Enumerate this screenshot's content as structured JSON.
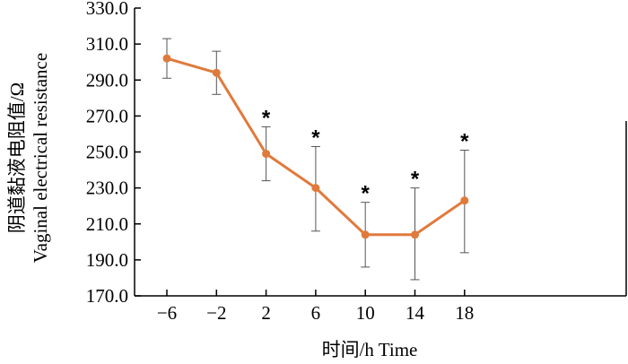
{
  "chart_data": {
    "type": "line",
    "xlabel": "时间/h Time",
    "ylabel_lines": [
      "阴道黏液电阻值/Ω",
      "Vaginal electrical resistance"
    ],
    "x": [
      -6,
      -2,
      2,
      6,
      10,
      14,
      18
    ],
    "x_tick_labels": [
      "−6",
      "−2",
      "2",
      "6",
      "10",
      "14",
      "18"
    ],
    "y_ticks": [
      170,
      190,
      210,
      230,
      250,
      270,
      290,
      310,
      330
    ],
    "y_tick_labels": [
      "170.0",
      "190.0",
      "210.0",
      "230.0",
      "250.0",
      "270.0",
      "290.0",
      "310.0",
      "330.0"
    ],
    "ylim": [
      170,
      330
    ],
    "series": [
      {
        "values": [
          302,
          294,
          249,
          230,
          204,
          204,
          223
        ],
        "error_upper": [
          313,
          306,
          264,
          253,
          222,
          230,
          251
        ],
        "error_lower": [
          291,
          282,
          234,
          206,
          186,
          179,
          194
        ],
        "significant": [
          false,
          false,
          true,
          true,
          true,
          true,
          true
        ],
        "significance_marker": "*",
        "color": "#e07a3c"
      }
    ],
    "grid": false
  }
}
